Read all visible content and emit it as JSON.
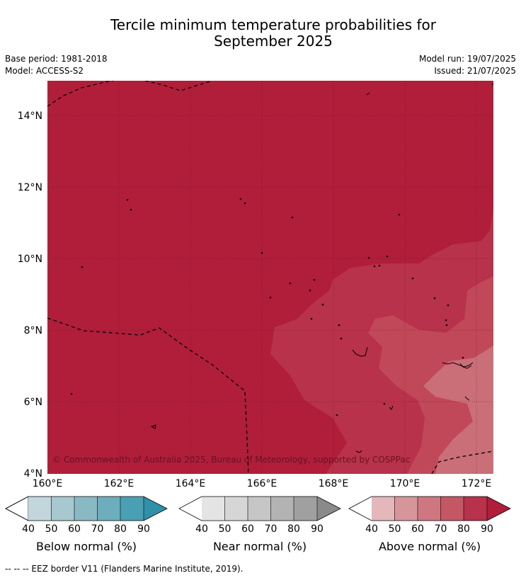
{
  "title": {
    "line1": "Tercile minimum temperature probabilities for",
    "line2": "September 2025"
  },
  "meta": {
    "base_period": "Base period: 1981-2018",
    "model": "Model: ACCESS-S2",
    "model_run": "Model run: 19/07/2025",
    "issued": "Issued: 21/07/2025"
  },
  "map": {
    "lon_range": [
      160,
      172.5
    ],
    "lat_range": [
      4,
      15
    ],
    "x_ticks": [
      "160°E",
      "162°E",
      "164°E",
      "166°E",
      "168°E",
      "170°E",
      "172°E"
    ],
    "y_ticks": [
      "14°N",
      "12°N",
      "10°N",
      "8°N",
      "6°N",
      "4°N"
    ],
    "copyright": "© Commonwealth of Australia 2025, Bureau of Meteorology, supported by COSPPac",
    "gridlines": true
  },
  "colorbars": [
    {
      "label": "Below normal (%)",
      "ticks": [
        "40",
        "50",
        "60",
        "70",
        "80",
        "90"
      ],
      "colors": [
        "#c2d6dc",
        "#a6c8ce",
        "#89b9c3",
        "#6daebc",
        "#4aa0b3",
        "#2f90a8"
      ]
    },
    {
      "label": "Near normal (%)",
      "ticks": [
        "40",
        "50",
        "60",
        "70",
        "80",
        "90"
      ],
      "colors": [
        "#e4e4e4",
        "#d6d6d6",
        "#c6c6c6",
        "#b3b3b3",
        "#a0a0a0",
        "#8a8a8a"
      ]
    },
    {
      "label": "Above normal (%)",
      "ticks": [
        "40",
        "50",
        "60",
        "70",
        "80",
        "90"
      ],
      "colors": [
        "#e3b7bc",
        "#d6959b",
        "#cf7780",
        "#c55765",
        "#b7324a",
        "#b01e3a"
      ]
    }
  ],
  "footnote": "--  --  -- EEZ border V11 (Flanders Marine Institute, 2019)."
}
